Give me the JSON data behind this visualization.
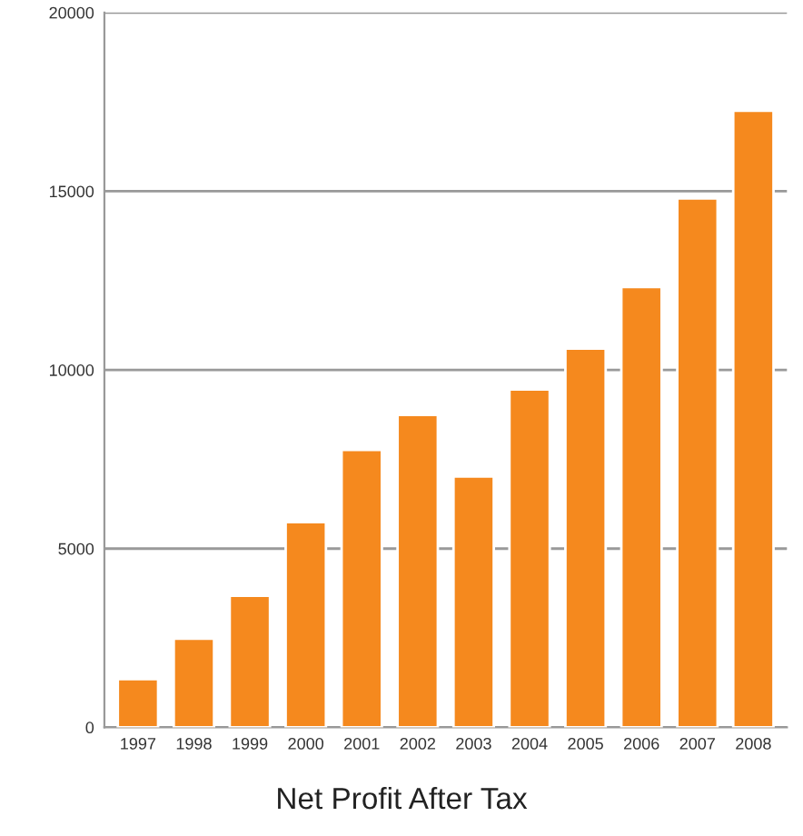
{
  "chart_data": {
    "type": "bar",
    "title": "Net Profit After Tax",
    "categories": [
      "1997",
      "1998",
      "1999",
      "2000",
      "2001",
      "2002",
      "2003",
      "2004",
      "2005",
      "2006",
      "2007",
      "2008"
    ],
    "values": [
      1350,
      2480,
      3680,
      5740,
      7760,
      8740,
      7020,
      9450,
      10600,
      12320,
      14800,
      17250
    ],
    "color": "#f5891e",
    "ylim": [
      0,
      20000
    ],
    "yticks": [
      0,
      5000,
      10000,
      15000,
      20000
    ],
    "grid": "y"
  }
}
